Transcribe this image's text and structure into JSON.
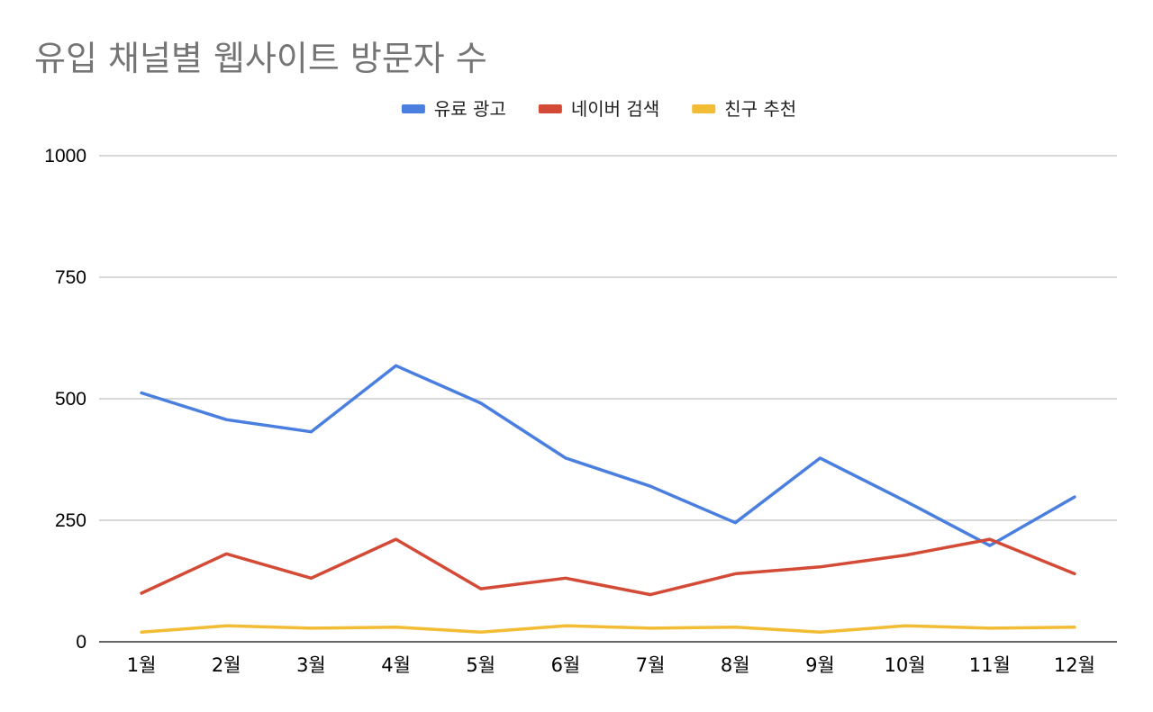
{
  "chart_data": {
    "type": "line",
    "title": "유입 채널별 웹사이트 방문자 수",
    "xlabel": "",
    "ylabel": "",
    "categories": [
      "1월",
      "2월",
      "3월",
      "4월",
      "5월",
      "6월",
      "7월",
      "8월",
      "9월",
      "10월",
      "11월",
      "12월"
    ],
    "ylim": [
      0,
      1000
    ],
    "yticks": [
      0,
      250,
      500,
      750,
      1000
    ],
    "ytick_labels": [
      "0",
      "250",
      "500",
      "750",
      "1000"
    ],
    "grid": true,
    "legend_position": "top-center",
    "series": [
      {
        "name": "유료 광고",
        "color": "#4a7fe0",
        "values": [
          512,
          457,
          432,
          568,
          491,
          378,
          320,
          245,
          378,
          290,
          198,
          298
        ]
      },
      {
        "name": "네이버 검색",
        "color": "#d34b36",
        "values": [
          100,
          181,
          131,
          211,
          109,
          131,
          97,
          140,
          154,
          178,
          211,
          140
        ]
      },
      {
        "name": "친구 추천",
        "color": "#f2bd35",
        "values": [
          20,
          33,
          28,
          30,
          20,
          33,
          28,
          30,
          20,
          33,
          28,
          30
        ]
      }
    ]
  }
}
